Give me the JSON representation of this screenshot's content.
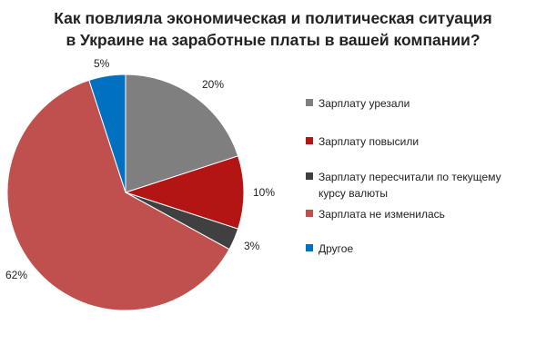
{
  "chart_data": {
    "type": "pie",
    "title_lines": [
      "Как повлияла экономическая и политическая ситуация",
      "в Украине на заработные платы в вашей компании?"
    ],
    "start_angle_deg": 0,
    "direction": "clockwise",
    "slices": [
      {
        "label": "Зарплату урезали",
        "value": 20,
        "value_label": "20%",
        "color": "#7f7f7f"
      },
      {
        "label": "Зарплату повысили",
        "value": 10,
        "value_label": "10%",
        "color": "#b31515"
      },
      {
        "label": "Зарплату пересчитали по текущему курсу валюты",
        "value": 3,
        "value_label": "3%",
        "color": "#404040"
      },
      {
        "label": "Зарплата не изменилась",
        "value": 62,
        "value_label": "62%",
        "color": "#c0504d"
      },
      {
        "label": "Другое",
        "value": 5,
        "value_label": "5%",
        "color": "#0070c0"
      }
    ],
    "legend": {
      "placement": "right",
      "items": [
        {
          "line1": "Зарплату урезали",
          "line2": ""
        },
        {
          "line1": "Зарплату повысили",
          "line2": ""
        },
        {
          "line1": "Зарплату пересчитали по текущему",
          "line2": "курсу валюты"
        },
        {
          "line1": "Зарплата не изменилась",
          "line2": ""
        },
        {
          "line1": "Другое",
          "line2": ""
        }
      ]
    }
  }
}
